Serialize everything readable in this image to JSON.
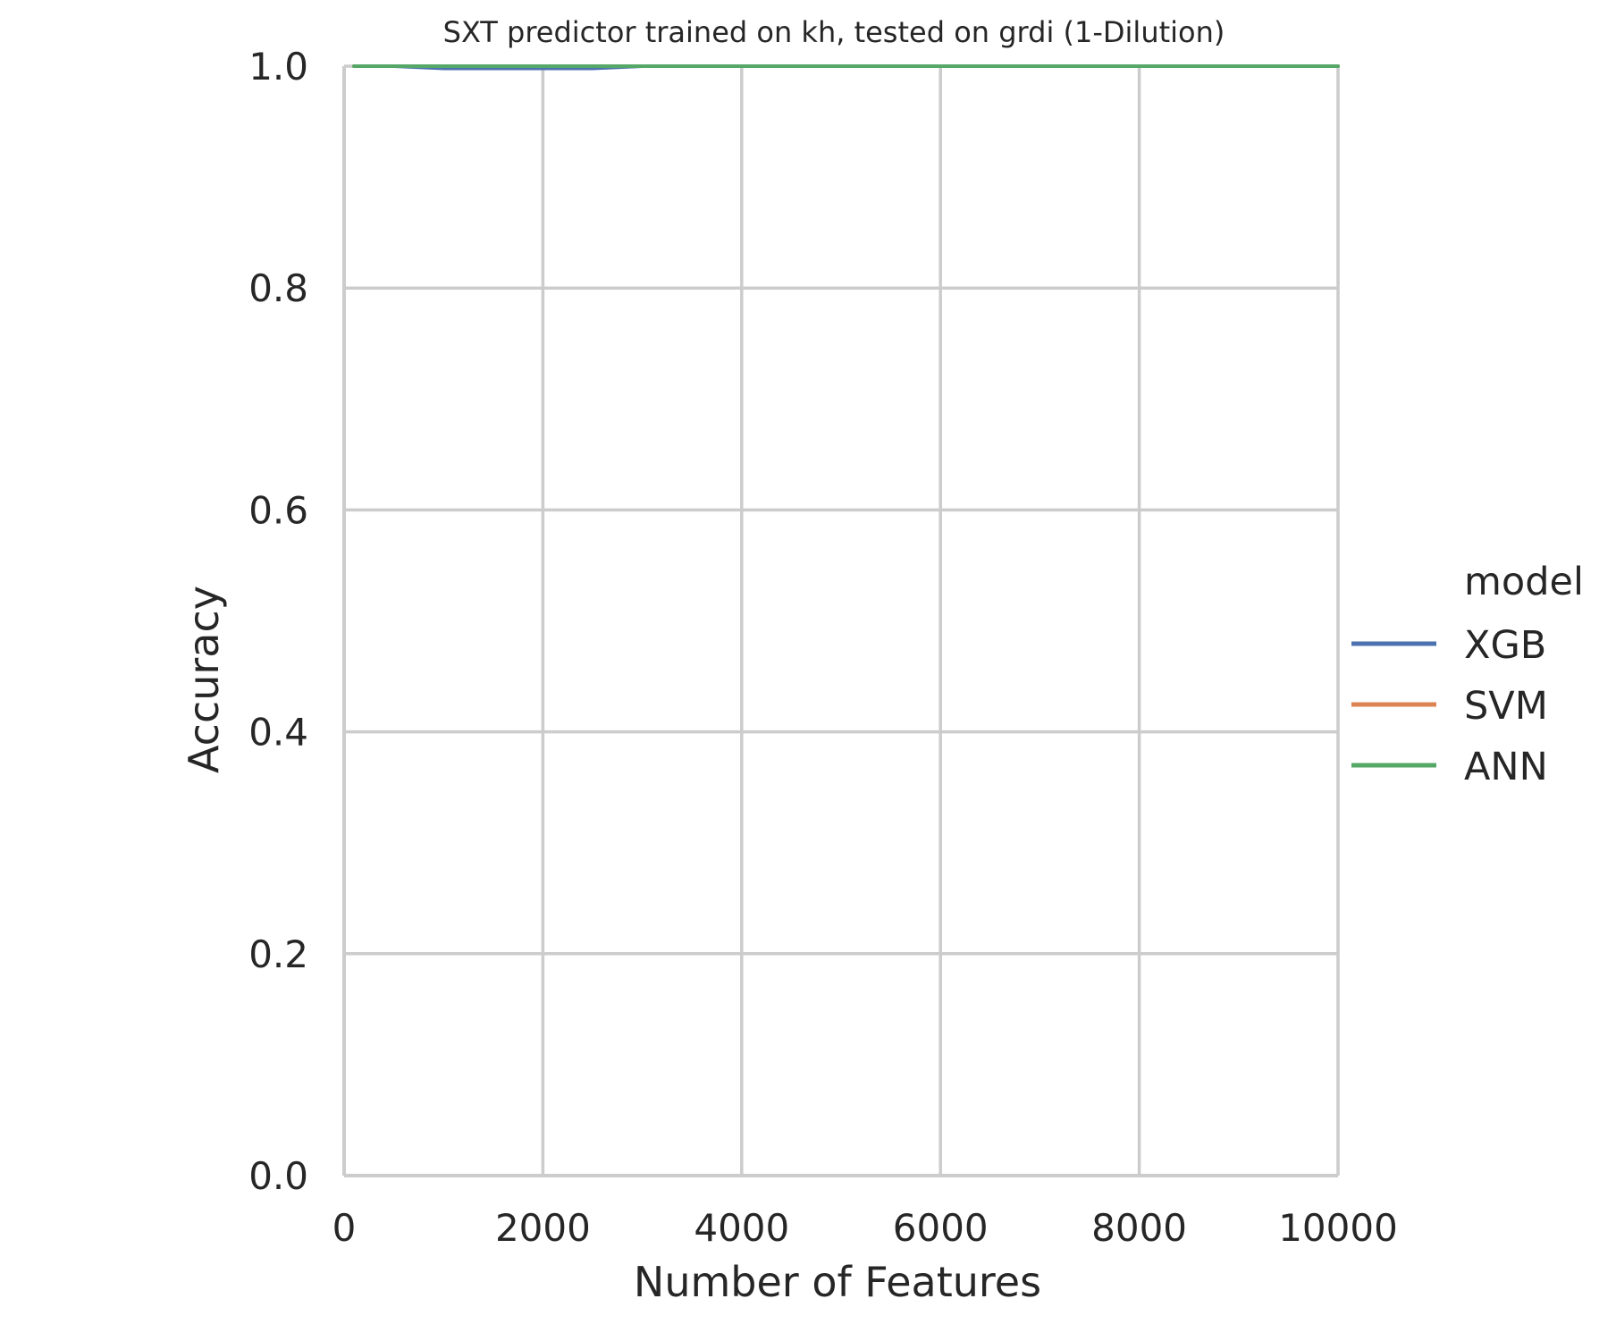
{
  "chart_data": {
    "type": "line",
    "title": "SXT predictor trained on kh, tested on grdi (1-Dilution)",
    "xlabel": "Number of Features",
    "ylabel": "Accuracy",
    "xlim": [
      0,
      10000
    ],
    "ylim": [
      0.0,
      1.0
    ],
    "xticks": [
      0,
      2000,
      4000,
      6000,
      8000,
      10000
    ],
    "xtick_labels": [
      "0",
      "2000",
      "4000",
      "6000",
      "8000",
      "10000"
    ],
    "yticks": [
      0.0,
      0.2,
      0.4,
      0.6,
      0.8,
      1.0
    ],
    "ytick_labels": [
      "0.0",
      "0.2",
      "0.4",
      "0.6",
      "0.8",
      "1.0"
    ],
    "grid": true,
    "legend": {
      "title": "model",
      "placement": "center-right, outside plot"
    },
    "series": [
      {
        "name": "XGB",
        "color": "#4c72b0",
        "x": [
          100,
          500,
          1000,
          1500,
          2000,
          2500,
          3000,
          4000,
          5000,
          6000,
          7000,
          8000,
          9000,
          10000
        ],
        "y": [
          1.0,
          1.0,
          0.998,
          0.998,
          0.998,
          0.998,
          1.0,
          1.0,
          1.0,
          1.0,
          1.0,
          1.0,
          1.0,
          1.0
        ]
      },
      {
        "name": "SVM",
        "color": "#dd8452",
        "x": [
          100,
          500,
          1000,
          1500,
          2000,
          2500,
          3000,
          4000,
          5000,
          6000,
          7000,
          8000,
          9000,
          10000
        ],
        "y": [
          1.0,
          1.0,
          1.0,
          1.0,
          1.0,
          1.0,
          1.0,
          1.0,
          1.0,
          1.0,
          1.0,
          1.0,
          1.0,
          1.0
        ]
      },
      {
        "name": "ANN",
        "color": "#55a868",
        "x": [
          100,
          500,
          1000,
          1500,
          2000,
          2500,
          3000,
          4000,
          5000,
          6000,
          7000,
          8000,
          9000,
          10000
        ],
        "y": [
          1.0,
          1.0,
          1.0,
          1.0,
          1.0,
          1.0,
          1.0,
          1.0,
          1.0,
          1.0,
          1.0,
          1.0,
          1.0,
          1.0
        ]
      }
    ]
  }
}
